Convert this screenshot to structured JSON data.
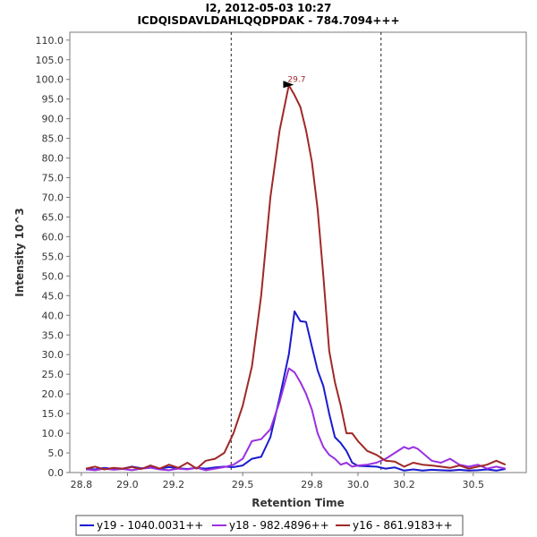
{
  "chart_data": {
    "type": "line",
    "title": "I2, 2012-05-03 10:27",
    "subtitle": "ICDQISDAVLDAHLQQDPDAK - 784.7094+++",
    "xlabel": "Retention Time",
    "ylabel": "Intensity 10^3",
    "xlim": [
      28.75,
      30.73
    ],
    "ylim": [
      0,
      112
    ],
    "x_ticks": [
      "28.8",
      "29.0",
      "29.2",
      "29.5",
      "29.8",
      "30.0",
      "30.2",
      "30.5"
    ],
    "x_tick_values": [
      28.8,
      29.0,
      29.2,
      29.5,
      29.8,
      30.0,
      30.2,
      30.5
    ],
    "y_ticks": [
      "0.0",
      "5.0",
      "10.0",
      "15.0",
      "20.0",
      "25.0",
      "30.0",
      "35.0",
      "40.0",
      "45.0",
      "50.0",
      "55.0",
      "60.0",
      "65.0",
      "70.0",
      "75.0",
      "80.0",
      "85.0",
      "90.0",
      "95.0",
      "100.0",
      "105.0",
      "110.0"
    ],
    "y_tick_values": [
      0,
      5,
      10,
      15,
      20,
      25,
      30,
      35,
      40,
      45,
      50,
      55,
      60,
      65,
      70,
      75,
      80,
      85,
      90,
      95,
      100,
      105,
      110
    ],
    "vertical_markers": [
      29.45,
      30.1
    ],
    "peak_annotation": {
      "label": "29.7",
      "x": 29.73,
      "y": 98.5,
      "color": "#a02828"
    },
    "grid": false,
    "legend_placement": "bottom",
    "series": [
      {
        "name": "y19 - 1040.0031++",
        "color": "#1a1ad0",
        "x": [
          28.82,
          28.86,
          28.9,
          28.94,
          28.98,
          29.02,
          29.06,
          29.1,
          29.14,
          29.18,
          29.22,
          29.26,
          29.3,
          29.34,
          29.38,
          29.42,
          29.46,
          29.5,
          29.54,
          29.58,
          29.62,
          29.66,
          29.7,
          29.725,
          29.75,
          29.775,
          29.8,
          29.825,
          29.85,
          29.875,
          29.9,
          29.925,
          29.95,
          29.975,
          30.0,
          30.04,
          30.08,
          30.12,
          30.16,
          30.2,
          30.24,
          30.28,
          30.32,
          30.36,
          30.4,
          30.44,
          30.48,
          30.52,
          30.56,
          30.6,
          30.64
        ],
        "y": [
          1.0,
          0.8,
          1.2,
          0.9,
          1.0,
          1.5,
          1.1,
          1.3,
          1.0,
          1.4,
          1.1,
          0.9,
          1.2,
          1.0,
          1.3,
          1.5,
          1.4,
          1.8,
          3.5,
          4.0,
          9.0,
          19.0,
          30.0,
          41.0,
          38.5,
          38.3,
          32.0,
          26.0,
          22.0,
          15.0,
          9.0,
          7.5,
          5.5,
          2.5,
          1.7,
          1.6,
          1.5,
          1.0,
          1.3,
          0.5,
          0.8,
          0.5,
          0.7,
          0.6,
          0.5,
          0.7,
          0.5,
          0.6,
          0.8,
          0.5,
          0.9
        ]
      },
      {
        "name": "y18 - 982.4896++",
        "color": "#9a30e0",
        "x": [
          28.82,
          28.86,
          28.9,
          28.94,
          28.98,
          29.02,
          29.06,
          29.1,
          29.14,
          29.18,
          29.22,
          29.26,
          29.3,
          29.34,
          29.38,
          29.42,
          29.46,
          29.5,
          29.54,
          29.58,
          29.62,
          29.66,
          29.7,
          29.725,
          29.75,
          29.775,
          29.8,
          29.825,
          29.85,
          29.875,
          29.9,
          29.925,
          29.95,
          29.975,
          30.0,
          30.04,
          30.08,
          30.12,
          30.16,
          30.2,
          30.22,
          30.24,
          30.26,
          30.28,
          30.32,
          30.36,
          30.4,
          30.44,
          30.48,
          30.52,
          30.56,
          30.6,
          30.64
        ],
        "y": [
          0.8,
          0.6,
          1.0,
          0.7,
          0.9,
          0.6,
          1.0,
          1.2,
          0.8,
          0.6,
          1.0,
          0.8,
          1.2,
          0.6,
          1.0,
          1.4,
          2.0,
          3.5,
          8.0,
          8.5,
          11.0,
          18.0,
          26.5,
          25.5,
          23.0,
          20.0,
          16.0,
          10.0,
          6.5,
          4.5,
          3.5,
          2.0,
          2.5,
          1.5,
          1.8,
          2.0,
          2.5,
          3.5,
          5.0,
          6.5,
          6.0,
          6.5,
          6.0,
          5.0,
          3.0,
          2.5,
          3.5,
          2.0,
          1.5,
          2.0,
          1.0,
          1.5,
          1.0
        ]
      },
      {
        "name": "y16 - 861.9183++",
        "color": "#a02828",
        "x": [
          28.82,
          28.86,
          28.9,
          28.94,
          28.98,
          29.02,
          29.06,
          29.1,
          29.14,
          29.18,
          29.22,
          29.26,
          29.3,
          29.34,
          29.38,
          29.42,
          29.46,
          29.5,
          29.54,
          29.58,
          29.62,
          29.66,
          29.7,
          29.725,
          29.75,
          29.775,
          29.8,
          29.825,
          29.85,
          29.875,
          29.9,
          29.925,
          29.95,
          29.975,
          30.0,
          30.04,
          30.08,
          30.12,
          30.16,
          30.2,
          30.24,
          30.28,
          30.32,
          30.36,
          30.4,
          30.44,
          30.48,
          30.52,
          30.56,
          30.6,
          30.64
        ],
        "y": [
          1.0,
          1.5,
          0.8,
          1.2,
          1.0,
          1.4,
          0.9,
          1.8,
          1.0,
          2.0,
          1.2,
          2.5,
          1.0,
          3.0,
          3.5,
          5.0,
          10.0,
          17.0,
          27.0,
          45.0,
          70.0,
          87.0,
          98.5,
          96.0,
          93.0,
          87.0,
          79.0,
          67.0,
          50.0,
          31.0,
          23.0,
          17.0,
          10.0,
          10.0,
          8.0,
          5.5,
          4.5,
          3.0,
          2.8,
          1.5,
          2.5,
          2.0,
          1.8,
          1.5,
          1.2,
          1.8,
          1.0,
          1.5,
          2.0,
          3.0,
          2.0
        ]
      }
    ]
  }
}
